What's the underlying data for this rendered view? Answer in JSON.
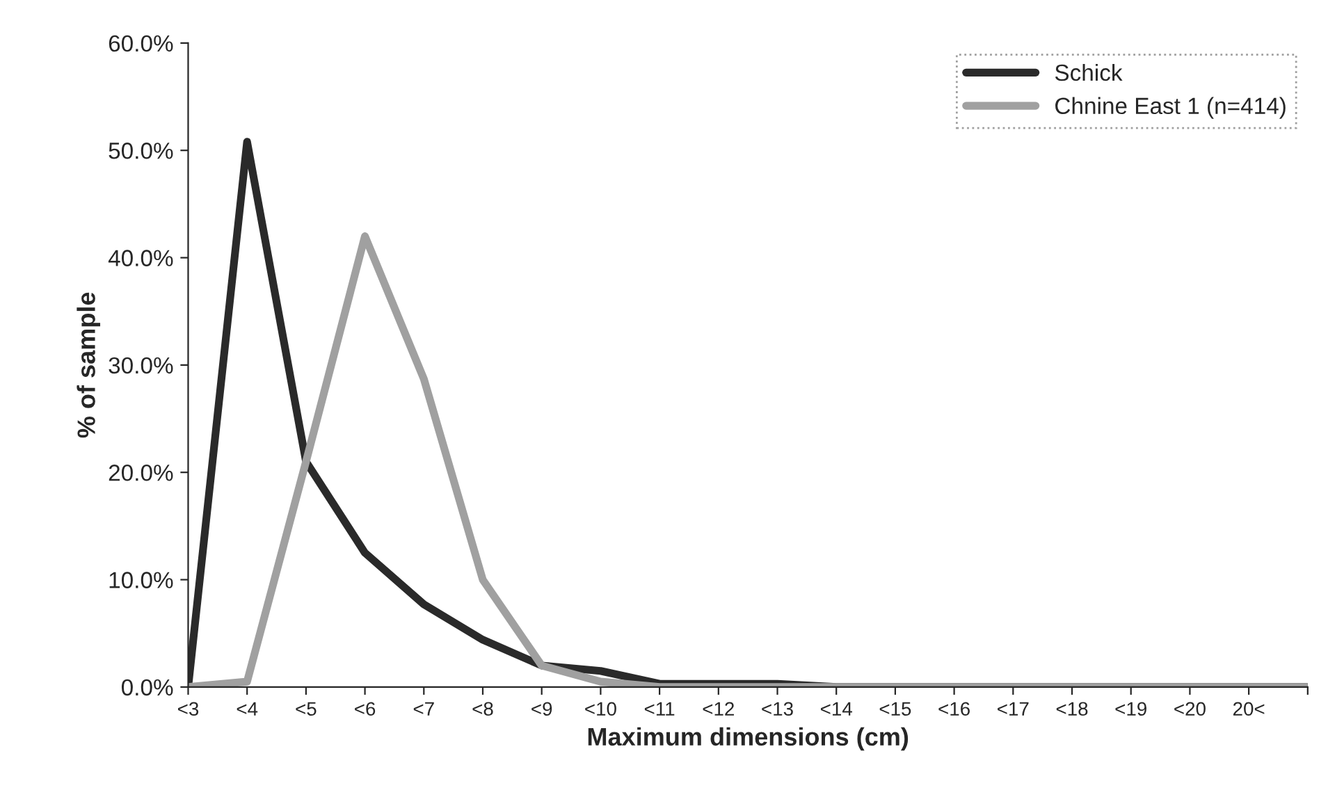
{
  "chart_data": {
    "type": "line",
    "xlabel": "Maximum dimensions (cm)",
    "ylabel": "% of sample",
    "categories": [
      "<3",
      "<4",
      "<5",
      "<6",
      "<7",
      "<8",
      "<9",
      "<10",
      "<11",
      "<12",
      "<13",
      "<14",
      "<15",
      "<16",
      "<17",
      "<18",
      "<19",
      "<20",
      "20<",
      null
    ],
    "series": [
      {
        "name": "Schick",
        "color": "#2a2a2a",
        "values": [
          0,
          50.8,
          21,
          12.5,
          7.7,
          4.4,
          2,
          1.5,
          0.3,
          0.3,
          0.3,
          0,
          0,
          0,
          0,
          0,
          0,
          0,
          0,
          0
        ]
      },
      {
        "name": "Chnine East 1 (n=414)",
        "color": "#a0a0a0",
        "values": [
          0,
          0.5,
          21,
          42,
          28.7,
          10,
          2,
          0.5,
          0,
          0,
          0,
          0,
          0,
          0,
          0,
          0,
          0,
          0,
          0,
          0
        ]
      }
    ],
    "ylim": [
      0,
      60
    ],
    "yticks": [
      {
        "value": 0,
        "label": "0.0%"
      },
      {
        "value": 10,
        "label": "10.0%"
      },
      {
        "value": 20,
        "label": "20.0%"
      },
      {
        "value": 30,
        "label": "30.0%"
      },
      {
        "value": 40,
        "label": "40.0%"
      },
      {
        "value": 50,
        "label": "50.0%"
      },
      {
        "value": 60,
        "label": "60.0%"
      }
    ],
    "grid": false,
    "legend": "top right",
    "marker": "none",
    "line_style": "solid"
  }
}
